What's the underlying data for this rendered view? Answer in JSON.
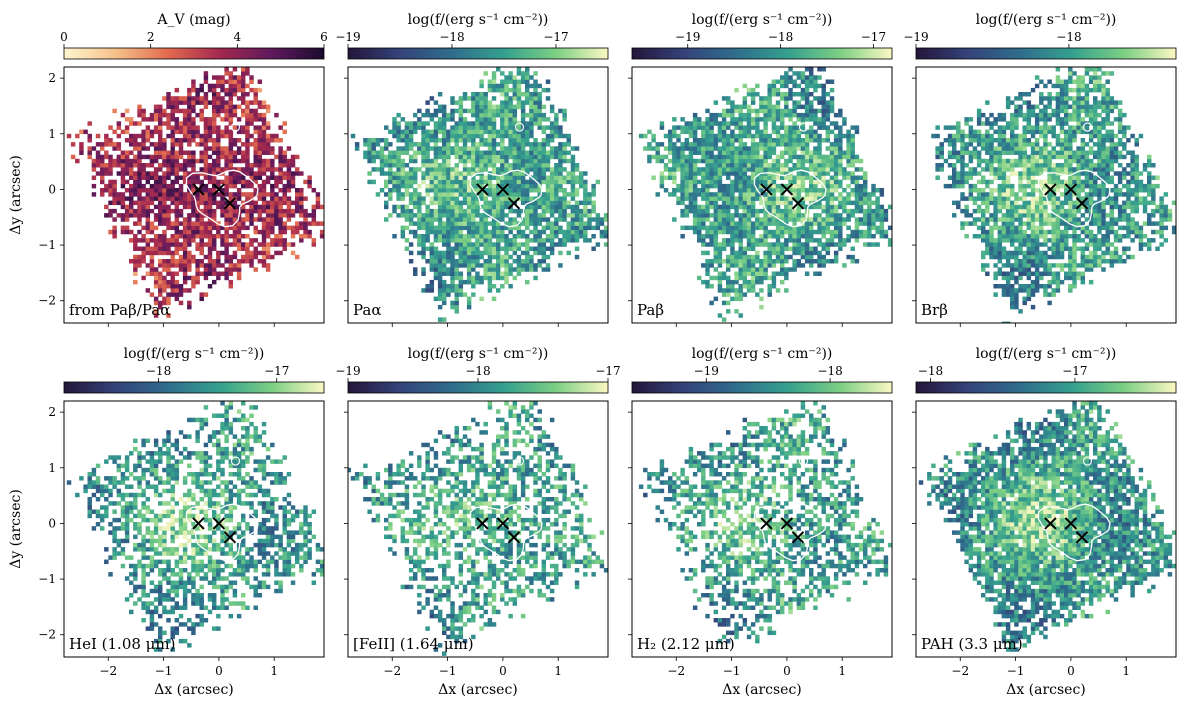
{
  "figure": {
    "x_label": "Δx (arcsec)",
    "y_label": "Δy (arcsec)"
  },
  "chart_data": [
    {
      "type": "heatmap",
      "map_label": "from Paβ/Paα",
      "colorbar_label": "A_V (mag)",
      "colorbar_ticks": [
        0,
        2,
        4,
        6
      ],
      "colorbar_range": [
        0,
        6
      ],
      "colormap": "magma-reversed",
      "colormap_stops": [
        "#fff5cf",
        "#f5c18a",
        "#e26a4e",
        "#a3284f",
        "#5e1a5c",
        "#1b0a2f"
      ],
      "xlim": [
        -2.8,
        1.9
      ],
      "ylim": [
        -2.4,
        2.2
      ],
      "xticks": [
        -2,
        -1,
        0,
        1
      ],
      "yticks": [
        -2,
        -1,
        0,
        1,
        2
      ],
      "show_xlabel": false,
      "show_ylabel": true,
      "seed": 11,
      "density": 0.82,
      "markers": [
        {
          "x": -0.37,
          "y": 0.0
        },
        {
          "x": 0.0,
          "y": 0.0
        },
        {
          "x": 0.2,
          "y": -0.25
        }
      ]
    },
    {
      "type": "heatmap",
      "map_label": "Paα",
      "colorbar_label": "log(f/(erg s⁻¹ cm⁻²))",
      "colorbar_ticks": [
        -19,
        -18,
        -17
      ],
      "colorbar_range": [
        -19,
        -16.5
      ],
      "colormap": "crest",
      "colormap_stops": [
        "#24163a",
        "#34437a",
        "#2f6d8c",
        "#35a08e",
        "#7ccf84",
        "#fcf8c3"
      ],
      "xlim": [
        -2.8,
        1.9
      ],
      "ylim": [
        -2.4,
        2.2
      ],
      "xticks": [
        -2,
        -1,
        0,
        1
      ],
      "yticks": [
        -2,
        -1,
        0,
        1,
        2
      ],
      "show_xlabel": false,
      "show_ylabel": false,
      "seed": 23,
      "density": 0.9,
      "markers": [
        {
          "x": -0.37,
          "y": 0.0
        },
        {
          "x": 0.0,
          "y": 0.0
        },
        {
          "x": 0.2,
          "y": -0.25
        }
      ]
    },
    {
      "type": "heatmap",
      "map_label": "Paβ",
      "colorbar_label": "log(f/(erg s⁻¹ cm⁻²))",
      "colorbar_ticks": [
        -19,
        -18,
        -17
      ],
      "colorbar_range": [
        -19.6,
        -16.8
      ],
      "colormap": "crest",
      "colormap_stops": [
        "#24163a",
        "#34437a",
        "#2f6d8c",
        "#35a08e",
        "#7ccf84",
        "#fcf8c3"
      ],
      "xlim": [
        -2.8,
        1.9
      ],
      "ylim": [
        -2.4,
        2.2
      ],
      "xticks": [
        -2,
        -1,
        0,
        1
      ],
      "yticks": [
        -2,
        -1,
        0,
        1,
        2
      ],
      "show_xlabel": false,
      "show_ylabel": false,
      "seed": 37,
      "density": 0.9,
      "markers": [
        {
          "x": -0.37,
          "y": 0.0
        },
        {
          "x": 0.0,
          "y": 0.0
        },
        {
          "x": 0.2,
          "y": -0.25
        }
      ]
    },
    {
      "type": "heatmap",
      "map_label": "Brβ",
      "colorbar_label": "log(f/(erg s⁻¹ cm⁻²))",
      "colorbar_ticks": [
        -19,
        -18
      ],
      "colorbar_range": [
        -19.0,
        -17.3
      ],
      "colormap": "crest",
      "colormap_stops": [
        "#24163a",
        "#34437a",
        "#2f6d8c",
        "#35a08e",
        "#7ccf84",
        "#fcf8c3"
      ],
      "xlim": [
        -2.8,
        1.9
      ],
      "ylim": [
        -2.4,
        2.2
      ],
      "xticks": [
        -2,
        -1,
        0,
        1
      ],
      "yticks": [
        -2,
        -1,
        0,
        1,
        2
      ],
      "show_xlabel": false,
      "show_ylabel": false,
      "seed": 41,
      "density": 0.88,
      "markers": [
        {
          "x": -0.37,
          "y": 0.0
        },
        {
          "x": 0.0,
          "y": 0.0
        },
        {
          "x": 0.2,
          "y": -0.25
        }
      ]
    },
    {
      "type": "heatmap",
      "map_label": "HeI (1.08 μm)",
      "colorbar_label": "log(f/(erg s⁻¹ cm⁻²))",
      "colorbar_ticks": [
        -18,
        -17
      ],
      "colorbar_range": [
        -18.8,
        -16.6
      ],
      "colormap": "crest",
      "colormap_stops": [
        "#24163a",
        "#34437a",
        "#2f6d8c",
        "#35a08e",
        "#7ccf84",
        "#fcf8c3"
      ],
      "xlim": [
        -2.8,
        1.9
      ],
      "ylim": [
        -2.4,
        2.2
      ],
      "xticks": [
        -2,
        -1,
        0,
        1
      ],
      "yticks": [
        -2,
        -1,
        0,
        1,
        2
      ],
      "show_xlabel": true,
      "show_ylabel": true,
      "seed": 53,
      "density": 0.6,
      "markers": [
        {
          "x": -0.37,
          "y": 0.0
        },
        {
          "x": 0.0,
          "y": 0.0
        },
        {
          "x": 0.2,
          "y": -0.25
        }
      ]
    },
    {
      "type": "heatmap",
      "map_label": "[FeII] (1.64 μm)",
      "colorbar_label": "log(f/(erg s⁻¹ cm⁻²))",
      "colorbar_ticks": [
        -19,
        -18,
        -17
      ],
      "colorbar_range": [
        -19,
        -17
      ],
      "colormap": "crest",
      "colormap_stops": [
        "#24163a",
        "#34437a",
        "#2f6d8c",
        "#35a08e",
        "#7ccf84",
        "#fcf8c3"
      ],
      "xlim": [
        -2.8,
        1.9
      ],
      "ylim": [
        -2.4,
        2.2
      ],
      "xticks": [
        -2,
        -1,
        0,
        1
      ],
      "yticks": [
        -2,
        -1,
        0,
        1,
        2
      ],
      "show_xlabel": true,
      "show_ylabel": false,
      "seed": 67,
      "density": 0.58,
      "markers": [
        {
          "x": -0.37,
          "y": 0.0
        },
        {
          "x": 0.0,
          "y": 0.0
        },
        {
          "x": 0.2,
          "y": -0.25
        }
      ]
    },
    {
      "type": "heatmap",
      "map_label": "H₂ (2.12 μm)",
      "colorbar_label": "log(f/(erg s⁻¹ cm⁻²))",
      "colorbar_ticks": [
        -19,
        -18
      ],
      "colorbar_range": [
        -19.6,
        -17.5
      ],
      "colormap": "crest",
      "colormap_stops": [
        "#24163a",
        "#34437a",
        "#2f6d8c",
        "#35a08e",
        "#7ccf84",
        "#fcf8c3"
      ],
      "xlim": [
        -2.8,
        1.9
      ],
      "ylim": [
        -2.4,
        2.2
      ],
      "xticks": [
        -2,
        -1,
        0,
        1
      ],
      "yticks": [
        -2,
        -1,
        0,
        1,
        2
      ],
      "show_xlabel": true,
      "show_ylabel": false,
      "seed": 79,
      "density": 0.56,
      "markers": [
        {
          "x": -0.37,
          "y": 0.0
        },
        {
          "x": 0.0,
          "y": 0.0
        },
        {
          "x": 0.2,
          "y": -0.25
        }
      ]
    },
    {
      "type": "heatmap",
      "map_label": "PAH (3.3 μm)",
      "colorbar_label": "log(f/(erg s⁻¹ cm⁻²))",
      "colorbar_ticks": [
        -18,
        -17
      ],
      "colorbar_range": [
        -18.1,
        -16.3
      ],
      "colormap": "crest",
      "colormap_stops": [
        "#24163a",
        "#34437a",
        "#2f6d8c",
        "#35a08e",
        "#7ccf84",
        "#fcf8c3"
      ],
      "xlim": [
        -2.8,
        1.9
      ],
      "ylim": [
        -2.4,
        2.2
      ],
      "xticks": [
        -2,
        -1,
        0,
        1
      ],
      "yticks": [
        -2,
        -1,
        0,
        1,
        2
      ],
      "show_xlabel": true,
      "show_ylabel": false,
      "seed": 97,
      "density": 0.95,
      "markers": [
        {
          "x": -0.37,
          "y": 0.0
        },
        {
          "x": 0.0,
          "y": 0.0
        },
        {
          "x": 0.2,
          "y": -0.25
        }
      ]
    }
  ]
}
